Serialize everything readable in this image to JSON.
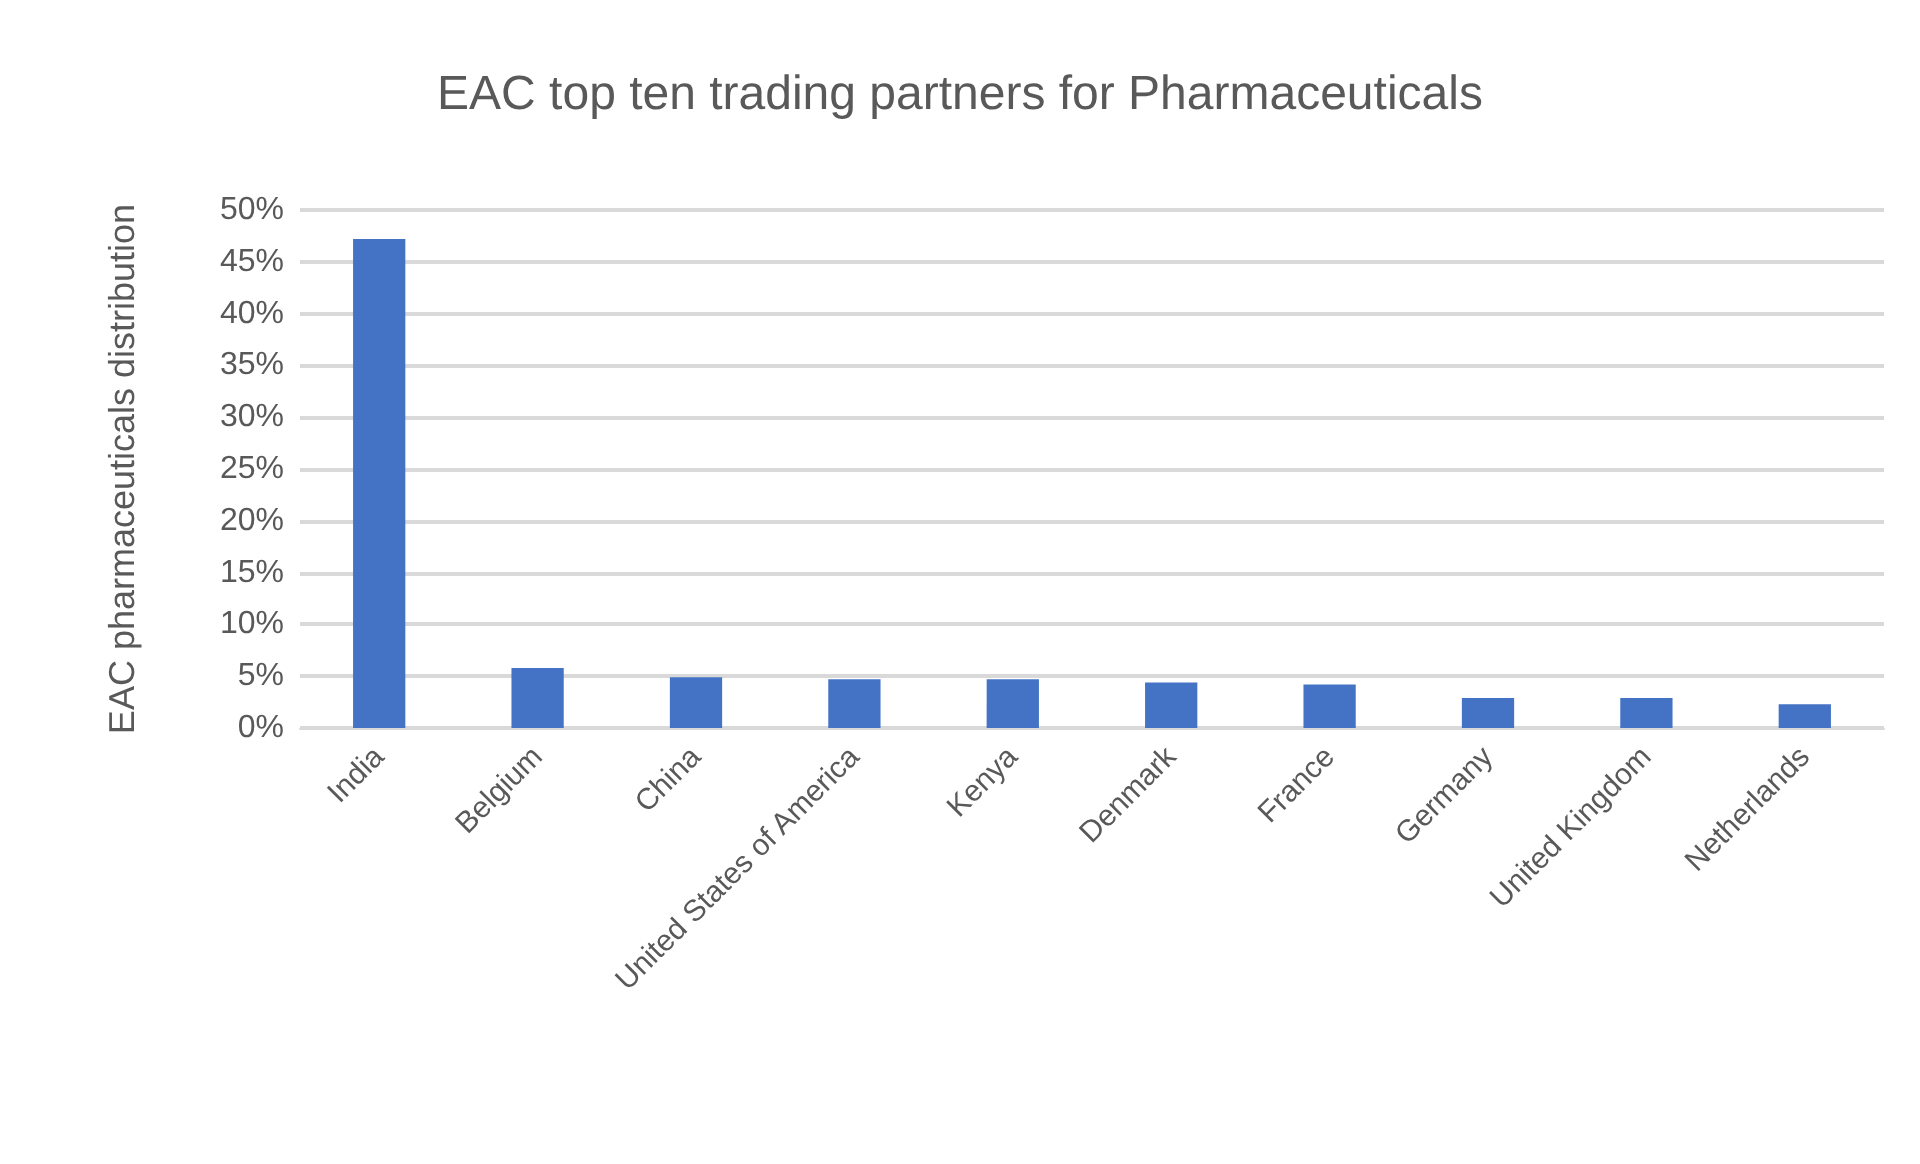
{
  "chart_data": {
    "type": "bar",
    "title": "EAC top ten trading partners for Pharmaceuticals",
    "ylabel": "EAC pharmaceuticals distribution",
    "categories": [
      "India",
      "Belgium",
      "China",
      "United States of America",
      "Kenya",
      "Denmark",
      "France",
      "Germany",
      "United Kingdom",
      "Netherlands"
    ],
    "values": [
      47.2,
      5.8,
      4.9,
      4.7,
      4.7,
      4.4,
      4.2,
      2.9,
      2.9,
      2.3
    ],
    "color": "#4472c4",
    "ylim": [
      0,
      50
    ],
    "yticks": [
      {
        "value": 0,
        "label": "0%"
      },
      {
        "value": 5,
        "label": "5%"
      },
      {
        "value": 10,
        "label": "10%"
      },
      {
        "value": 15,
        "label": "15%"
      },
      {
        "value": 20,
        "label": "20%"
      },
      {
        "value": 25,
        "label": "25%"
      },
      {
        "value": 30,
        "label": "30%"
      },
      {
        "value": 35,
        "label": "35%"
      },
      {
        "value": 40,
        "label": "40%"
      },
      {
        "value": 45,
        "label": "45%"
      },
      {
        "value": 50,
        "label": "50%"
      }
    ],
    "grid": true
  }
}
